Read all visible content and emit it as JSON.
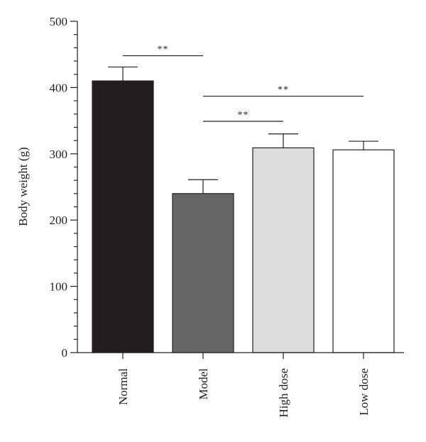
{
  "chart_data": {
    "type": "bar",
    "categories": [
      "Normal",
      "Model",
      "High dose",
      "Low dose"
    ],
    "series": [
      {
        "values": [
          410,
          240,
          309,
          306
        ],
        "errors": [
          21,
          21,
          21,
          13
        ],
        "colors": [
          "#231f20",
          "#666666",
          "#dddddd",
          "#ffffff"
        ]
      }
    ],
    "ylabel": "Body weight (g)",
    "ylim": [
      0,
      500
    ],
    "yticks": [
      0,
      100,
      200,
      300,
      400,
      500
    ],
    "y_minor_step": 20,
    "grid": false,
    "legend": "none",
    "significance": [
      {
        "from": 0,
        "to": 1,
        "label": "**",
        "y": 448
      },
      {
        "from": 1,
        "to": 3,
        "label": "**",
        "y": 387
      },
      {
        "from": 1,
        "to": 2,
        "label": "**",
        "y": 349
      }
    ]
  }
}
